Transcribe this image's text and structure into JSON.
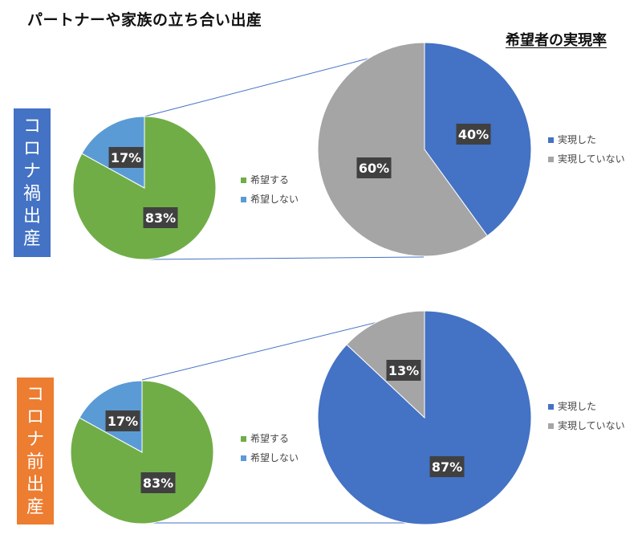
{
  "title": "パートナーや家族の立ち合い出産",
  "subtitle": "希望者の実現率",
  "colors": {
    "want": "#70ad47",
    "not_want": "#5b9bd5",
    "realized": "#4472c4",
    "not_realized": "#a5a5a5",
    "covid_label_bg": "#4472c4",
    "before_label_bg": "#ed7d31"
  },
  "chart_data": [
    {
      "type": "pie",
      "group_label": "コロナ禍出産",
      "categories": [
        "希望する",
        "希望しない"
      ],
      "values": [
        83,
        17
      ],
      "labels": [
        "83%",
        "17%"
      ]
    },
    {
      "type": "pie",
      "group_label": "コロナ禍出産",
      "categories": [
        "実現した",
        "実現していない"
      ],
      "values": [
        40,
        60
      ],
      "labels": [
        "40%",
        "60%"
      ]
    },
    {
      "type": "pie",
      "group_label": "コロナ前出産",
      "categories": [
        "希望する",
        "希望しない"
      ],
      "values": [
        83,
        17
      ],
      "labels": [
        "83%",
        "17%"
      ]
    },
    {
      "type": "pie",
      "group_label": "コロナ前出産",
      "categories": [
        "実現した",
        "実現していない"
      ],
      "values": [
        87,
        13
      ],
      "labels": [
        "87%",
        "13%"
      ]
    }
  ]
}
